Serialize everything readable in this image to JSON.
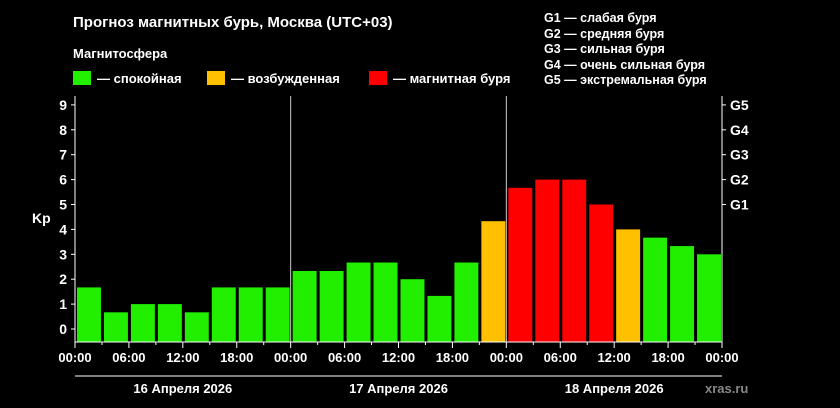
{
  "title": "Прогноз магнитных бурь, Москва (UTC+03)",
  "magnetosphere_label": "Магнитосфера",
  "legend": [
    {
      "label": "— спокойная",
      "color": "#22ee00"
    },
    {
      "label": "— возбужденная",
      "color": "#ffc000"
    },
    {
      "label": "— магнитная буря",
      "color": "#ff0000"
    }
  ],
  "storm_scale": [
    "G1 — слабая буря",
    "G2 — средняя буря",
    "G3 — сильная буря",
    "G4 — очень сильная буря",
    "G5 — экстремальная буря"
  ],
  "source": "xras.ru",
  "chart_data": {
    "type": "bar",
    "ylabel": "Kp",
    "ylim": [
      0,
      9
    ],
    "yticks": [
      "0",
      "1",
      "2",
      "3",
      "4",
      "5",
      "6",
      "7",
      "8",
      "9"
    ],
    "right_axis_ticks": [
      {
        "label": "G1",
        "kp": 5
      },
      {
        "label": "G2",
        "kp": 6
      },
      {
        "label": "G3",
        "kp": 7
      },
      {
        "label": "G4",
        "kp": 8
      },
      {
        "label": "G5",
        "kp": 9
      }
    ],
    "xticks": [
      "00:00",
      "06:00",
      "12:00",
      "18:00",
      "00:00",
      "06:00",
      "12:00",
      "18:00",
      "00:00",
      "06:00",
      "12:00",
      "18:00",
      "00:00"
    ],
    "days": [
      "16 Апреля 2026",
      "17 Апреля 2026",
      "18 Апреля 2026"
    ],
    "interval_hours": 3,
    "values": [
      1.67,
      0.67,
      1.0,
      1.0,
      0.67,
      1.67,
      1.67,
      1.67,
      2.33,
      2.33,
      2.67,
      2.67,
      2.0,
      1.33,
      2.67,
      4.33,
      5.67,
      6.0,
      6.0,
      5.0,
      4.0,
      3.67,
      3.33,
      3.0
    ],
    "colors": [
      "#22ee00",
      "#22ee00",
      "#22ee00",
      "#22ee00",
      "#22ee00",
      "#22ee00",
      "#22ee00",
      "#22ee00",
      "#22ee00",
      "#22ee00",
      "#22ee00",
      "#22ee00",
      "#22ee00",
      "#22ee00",
      "#22ee00",
      "#ffc000",
      "#ff0000",
      "#ff0000",
      "#ff0000",
      "#ff0000",
      "#ffc000",
      "#22ee00",
      "#22ee00",
      "#22ee00"
    ]
  }
}
